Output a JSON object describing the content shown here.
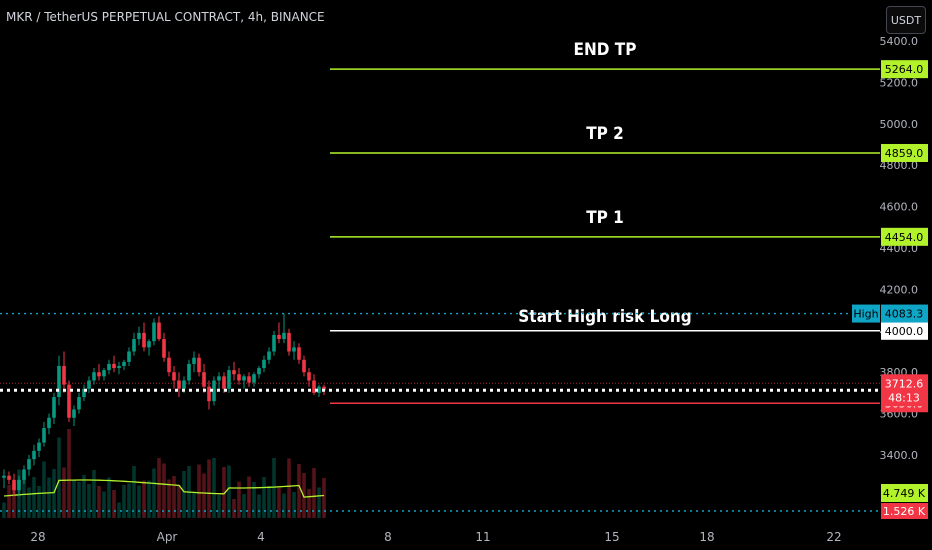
{
  "header": {
    "title": "MKR / TetherUS PERPETUAL CONTRACT, 4h, BINANCE",
    "currency_button": "USDT"
  },
  "chart_data": {
    "type": "candlestick",
    "title": "MKR / TetherUS PERPETUAL CONTRACT, 4h, BINANCE",
    "y_axis": {
      "ticks": [
        "3400.0",
        "3600.0",
        "3800.0",
        "4000.0",
        "4200.0",
        "4400.0",
        "4600.0",
        "4800.0",
        "5000.0",
        "5200.0",
        "5400.0"
      ],
      "tick_values": [
        3400,
        3600,
        3800,
        4000,
        4200,
        4400,
        4600,
        4800,
        5000,
        5200,
        5400
      ],
      "range": [
        3200,
        5440
      ]
    },
    "x_axis": {
      "ticks": [
        "28",
        "Apr",
        "4",
        "8",
        "11",
        "15",
        "18",
        "22"
      ]
    },
    "levels": [
      {
        "name": "END TP",
        "price": 5264.0,
        "label": "5264.0",
        "color": "#b2f22b"
      },
      {
        "name": "TP 2",
        "price": 4859.0,
        "label": "4859.0",
        "color": "#b2f22b"
      },
      {
        "name": "TP 1",
        "price": 4454.0,
        "label": "4454.0",
        "color": "#b2f22b"
      },
      {
        "name": "Start High risk Long",
        "price": 4000.0,
        "label": "4000.0",
        "color": "#ffffff"
      },
      {
        "name": "",
        "price": 3650.0,
        "label": "3650.0",
        "color": "#f23645"
      }
    ],
    "high_marker": {
      "tag": "High",
      "price": 4083.3,
      "label": "4083.3",
      "color": "#0ea5c6"
    },
    "last_price": {
      "price": 3712.6,
      "label": "3712.6",
      "countdown": "48:13",
      "color": "#f23645"
    },
    "volume": {
      "ma_label": "4.749 K",
      "last_label": "1.526 K"
    },
    "candles": [
      [
        3290,
        3330,
        3240,
        3300
      ],
      [
        3300,
        3320,
        3260,
        3280
      ],
      [
        3280,
        3310,
        3200,
        3230
      ],
      [
        3230,
        3300,
        3200,
        3280
      ],
      [
        3280,
        3350,
        3260,
        3330
      ],
      [
        3330,
        3400,
        3300,
        3380
      ],
      [
        3380,
        3450,
        3350,
        3420
      ],
      [
        3420,
        3480,
        3390,
        3460
      ],
      [
        3460,
        3560,
        3440,
        3530
      ],
      [
        3530,
        3600,
        3500,
        3580
      ],
      [
        3580,
        3700,
        3550,
        3680
      ],
      [
        3680,
        3880,
        3640,
        3830
      ],
      [
        3830,
        3900,
        3700,
        3740
      ],
      [
        3740,
        3760,
        3560,
        3580
      ],
      [
        3580,
        3640,
        3540,
        3620
      ],
      [
        3620,
        3700,
        3600,
        3680
      ],
      [
        3680,
        3740,
        3660,
        3720
      ],
      [
        3720,
        3780,
        3700,
        3760
      ],
      [
        3760,
        3820,
        3740,
        3800
      ],
      [
        3800,
        3840,
        3760,
        3780
      ],
      [
        3780,
        3820,
        3760,
        3810
      ],
      [
        3810,
        3860,
        3790,
        3840
      ],
      [
        3840,
        3880,
        3800,
        3820
      ],
      [
        3820,
        3850,
        3790,
        3830
      ],
      [
        3830,
        3860,
        3810,
        3850
      ],
      [
        3850,
        3920,
        3830,
        3900
      ],
      [
        3900,
        3990,
        3880,
        3960
      ],
      [
        3960,
        4020,
        3930,
        3990
      ],
      [
        3990,
        4040,
        3900,
        3920
      ],
      [
        3920,
        3960,
        3880,
        3950
      ],
      [
        3950,
        4060,
        3930,
        4040
      ],
      [
        4040,
        4070,
        3950,
        3960
      ],
      [
        3960,
        3990,
        3850,
        3870
      ],
      [
        3870,
        3900,
        3780,
        3800
      ],
      [
        3800,
        3830,
        3720,
        3760
      ],
      [
        3760,
        3800,
        3680,
        3720
      ],
      [
        3720,
        3780,
        3700,
        3760
      ],
      [
        3760,
        3860,
        3740,
        3840
      ],
      [
        3840,
        3900,
        3800,
        3870
      ],
      [
        3870,
        3890,
        3780,
        3800
      ],
      [
        3800,
        3840,
        3700,
        3730
      ],
      [
        3730,
        3760,
        3620,
        3660
      ],
      [
        3660,
        3780,
        3640,
        3760
      ],
      [
        3760,
        3800,
        3720,
        3780
      ],
      [
        3780,
        3800,
        3700,
        3720
      ],
      [
        3720,
        3830,
        3700,
        3810
      ],
      [
        3810,
        3850,
        3760,
        3790
      ],
      [
        3790,
        3820,
        3740,
        3760
      ],
      [
        3760,
        3790,
        3720,
        3780
      ],
      [
        3780,
        3800,
        3730,
        3750
      ],
      [
        3750,
        3800,
        3730,
        3790
      ],
      [
        3790,
        3830,
        3770,
        3820
      ],
      [
        3820,
        3880,
        3800,
        3860
      ],
      [
        3860,
        3920,
        3840,
        3900
      ],
      [
        3900,
        4000,
        3880,
        3980
      ],
      [
        3980,
        4040,
        3940,
        3960
      ],
      [
        3960,
        4083,
        3940,
        3990
      ],
      [
        3990,
        4010,
        3880,
        3900
      ],
      [
        3900,
        3950,
        3860,
        3920
      ],
      [
        3920,
        3940,
        3840,
        3860
      ],
      [
        3860,
        3880,
        3780,
        3800
      ],
      [
        3800,
        3820,
        3730,
        3760
      ],
      [
        3760,
        3790,
        3690,
        3700
      ],
      [
        3700,
        3740,
        3680,
        3730
      ],
      [
        3730,
        3740,
        3690,
        3712.6
      ]
    ]
  }
}
